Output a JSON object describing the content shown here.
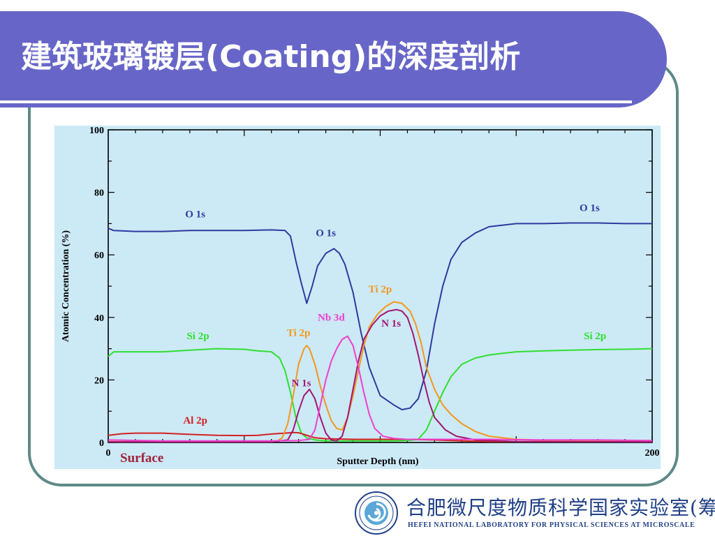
{
  "slide": {
    "title": "建筑玻璃镀层(Coating)的深度剖析",
    "theme_color": "#6766c8",
    "frame_color": "#5f8a87"
  },
  "footer": {
    "lab_name_cn": "合肥微尺度物质科学国家实验室(筹)",
    "lab_name_en": "HEFEI NATIONAL LABORATORY FOR PHYSICAL SCIENCES AT MICROSCALE",
    "logo_icon": "lab-emblem-icon"
  },
  "chart_data": {
    "type": "line",
    "title": "",
    "xlabel": "Sputter Depth (nm)",
    "ylabel": "Atomic Concentration (%)",
    "xlim": [
      0,
      200
    ],
    "ylim": [
      0,
      100
    ],
    "x_tick_labels": [
      "0",
      "200"
    ],
    "y_tick_labels": [
      "0",
      "20",
      "40",
      "60",
      "80",
      "100"
    ],
    "y_ticks": [
      0,
      20,
      40,
      60,
      80,
      100
    ],
    "background": "#cce9f6",
    "grid": false,
    "annotations": [
      {
        "text": "Surface",
        "x": 8,
        "y": -5
      }
    ],
    "series": [
      {
        "name": "O 1s",
        "color": "#2e3a9e",
        "labels": [
          {
            "text": "O 1s",
            "x": 32,
            "y": 72
          },
          {
            "text": "O 1s",
            "x": 80,
            "y": 66
          },
          {
            "text": "O 1s",
            "x": 177,
            "y": 74
          }
        ],
        "points": [
          [
            0,
            68.5
          ],
          [
            2,
            67.8
          ],
          [
            10,
            67.5
          ],
          [
            20,
            67.5
          ],
          [
            30,
            67.8
          ],
          [
            40,
            67.8
          ],
          [
            50,
            67.8
          ],
          [
            60,
            68
          ],
          [
            65,
            67.8
          ],
          [
            67,
            66
          ],
          [
            69,
            58
          ],
          [
            71,
            51
          ],
          [
            73,
            44.5
          ],
          [
            75,
            50
          ],
          [
            77,
            56.5
          ],
          [
            80,
            60.5
          ],
          [
            83,
            62
          ],
          [
            85,
            60.5
          ],
          [
            87,
            57
          ],
          [
            90,
            48
          ],
          [
            93,
            35
          ],
          [
            96,
            24
          ],
          [
            100,
            15
          ],
          [
            105,
            12
          ],
          [
            108,
            10.5
          ],
          [
            111,
            11
          ],
          [
            114,
            14
          ],
          [
            117,
            23
          ],
          [
            120,
            38
          ],
          [
            123,
            50
          ],
          [
            126,
            58.5
          ],
          [
            130,
            64
          ],
          [
            135,
            67
          ],
          [
            140,
            69
          ],
          [
            145,
            69.5
          ],
          [
            150,
            70
          ],
          [
            160,
            70
          ],
          [
            170,
            70.2
          ],
          [
            180,
            70.2
          ],
          [
            190,
            70
          ],
          [
            200,
            70
          ]
        ]
      },
      {
        "name": "Si 2p",
        "color": "#2ee02e",
        "labels": [
          {
            "text": "Si 2p",
            "x": 33,
            "y": 33
          },
          {
            "text": "Si 2p",
            "x": 179,
            "y": 33
          }
        ],
        "points": [
          [
            0,
            27.5
          ],
          [
            2,
            29
          ],
          [
            10,
            29
          ],
          [
            20,
            29
          ],
          [
            30,
            29.5
          ],
          [
            40,
            30
          ],
          [
            50,
            29.8
          ],
          [
            55,
            29.3
          ],
          [
            60,
            29
          ],
          [
            63,
            27
          ],
          [
            65,
            23
          ],
          [
            67,
            16
          ],
          [
            69,
            8
          ],
          [
            71,
            3
          ],
          [
            73,
            1.5
          ],
          [
            76,
            0.8
          ],
          [
            80,
            0.5
          ],
          [
            90,
            0.5
          ],
          [
            100,
            0.5
          ],
          [
            105,
            0.5
          ],
          [
            110,
            0.6
          ],
          [
            114,
            1
          ],
          [
            117,
            4
          ],
          [
            120,
            10
          ],
          [
            123,
            16
          ],
          [
            126,
            21
          ],
          [
            130,
            25
          ],
          [
            135,
            27
          ],
          [
            140,
            28
          ],
          [
            145,
            28.5
          ],
          [
            150,
            29
          ],
          [
            160,
            29.3
          ],
          [
            170,
            29.5
          ],
          [
            180,
            29.7
          ],
          [
            190,
            29.8
          ],
          [
            200,
            30
          ]
        ]
      },
      {
        "name": "Al 2p",
        "color": "#d42020",
        "labels": [
          {
            "text": "Al 2p",
            "x": 32,
            "y": 6
          }
        ],
        "points": [
          [
            0,
            2.3
          ],
          [
            5,
            2.8
          ],
          [
            10,
            3
          ],
          [
            20,
            3
          ],
          [
            30,
            2.6
          ],
          [
            40,
            2.3
          ],
          [
            50,
            2.2
          ],
          [
            55,
            2.3
          ],
          [
            60,
            2.7
          ],
          [
            65,
            3
          ],
          [
            68,
            3.2
          ],
          [
            70,
            3.1
          ],
          [
            72,
            2.6
          ],
          [
            74,
            2
          ],
          [
            76,
            1.5
          ],
          [
            80,
            1.2
          ],
          [
            90,
            1
          ],
          [
            100,
            1
          ],
          [
            110,
            1
          ],
          [
            120,
            0.8
          ],
          [
            130,
            0.5
          ],
          [
            140,
            0.3
          ],
          [
            160,
            0.3
          ],
          [
            180,
            0.3
          ],
          [
            200,
            0.3
          ]
        ]
      },
      {
        "name": "Ti 2p",
        "color": "#f3981c",
        "labels": [
          {
            "text": "Ti 2p",
            "x": 70,
            "y": 34
          },
          {
            "text": "Ti 2p",
            "x": 100,
            "y": 48
          }
        ],
        "points": [
          [
            0,
            0.3
          ],
          [
            50,
            0.3
          ],
          [
            62,
            0.4
          ],
          [
            64,
            1.5
          ],
          [
            66,
            6
          ],
          [
            68,
            15
          ],
          [
            70,
            25
          ],
          [
            72,
            30
          ],
          [
            73,
            31
          ],
          [
            74,
            30
          ],
          [
            76,
            25
          ],
          [
            78,
            18
          ],
          [
            80,
            12
          ],
          [
            82,
            7
          ],
          [
            84,
            4.5
          ],
          [
            86,
            4
          ],
          [
            88,
            8
          ],
          [
            90,
            15
          ],
          [
            92,
            23
          ],
          [
            94,
            31
          ],
          [
            96,
            37
          ],
          [
            99,
            41
          ],
          [
            102,
            43.5
          ],
          [
            105,
            45
          ],
          [
            108,
            44.5
          ],
          [
            111,
            42
          ],
          [
            113,
            38
          ],
          [
            115,
            32
          ],
          [
            117,
            24
          ],
          [
            120,
            17
          ],
          [
            123,
            12
          ],
          [
            126,
            9
          ],
          [
            130,
            6
          ],
          [
            135,
            3.5
          ],
          [
            140,
            2
          ],
          [
            150,
            1
          ],
          [
            160,
            0.7
          ],
          [
            180,
            0.4
          ],
          [
            200,
            0.3
          ]
        ]
      },
      {
        "name": "N 1s",
        "color": "#a01770",
        "labels": [
          {
            "text": "N 1s",
            "x": 71,
            "y": 18
          },
          {
            "text": "N 1s",
            "x": 104,
            "y": 37
          }
        ],
        "points": [
          [
            0,
            0.2
          ],
          [
            60,
            0.2
          ],
          [
            66,
            0.8
          ],
          [
            68,
            4
          ],
          [
            70,
            10
          ],
          [
            72,
            15
          ],
          [
            74,
            17
          ],
          [
            76,
            14
          ],
          [
            78,
            8
          ],
          [
            80,
            3
          ],
          [
            82,
            0.8
          ],
          [
            84,
            0.5
          ],
          [
            86,
            2
          ],
          [
            88,
            8
          ],
          [
            90,
            17
          ],
          [
            92,
            26
          ],
          [
            94,
            33
          ],
          [
            97,
            37.5
          ],
          [
            100,
            40.5
          ],
          [
            103,
            42
          ],
          [
            106,
            42.5
          ],
          [
            108,
            42
          ],
          [
            110,
            40
          ],
          [
            112,
            35
          ],
          [
            114,
            28
          ],
          [
            116,
            20
          ],
          [
            118,
            13
          ],
          [
            120,
            8
          ],
          [
            124,
            4
          ],
          [
            128,
            2
          ],
          [
            135,
            0.8
          ],
          [
            150,
            0.3
          ],
          [
            200,
            0.2
          ]
        ]
      },
      {
        "name": "Nb 3d",
        "color": "#f03ed0",
        "labels": [
          {
            "text": "Nb 3d",
            "x": 82,
            "y": 39
          }
        ],
        "points": [
          [
            0,
            0.8
          ],
          [
            20,
            0.5
          ],
          [
            40,
            0.5
          ],
          [
            60,
            0.5
          ],
          [
            70,
            0.6
          ],
          [
            74,
            1
          ],
          [
            76,
            4
          ],
          [
            78,
            12
          ],
          [
            80,
            20
          ],
          [
            82,
            26
          ],
          [
            84,
            30
          ],
          [
            86,
            33
          ],
          [
            88,
            34
          ],
          [
            90,
            31
          ],
          [
            92,
            24
          ],
          [
            94,
            16
          ],
          [
            96,
            9
          ],
          [
            98,
            4.5
          ],
          [
            101,
            2
          ],
          [
            105,
            1.3
          ],
          [
            110,
            1
          ],
          [
            120,
            1
          ],
          [
            140,
            1
          ],
          [
            160,
            0.8
          ],
          [
            180,
            0.8
          ],
          [
            200,
            0.6
          ]
        ]
      }
    ]
  }
}
